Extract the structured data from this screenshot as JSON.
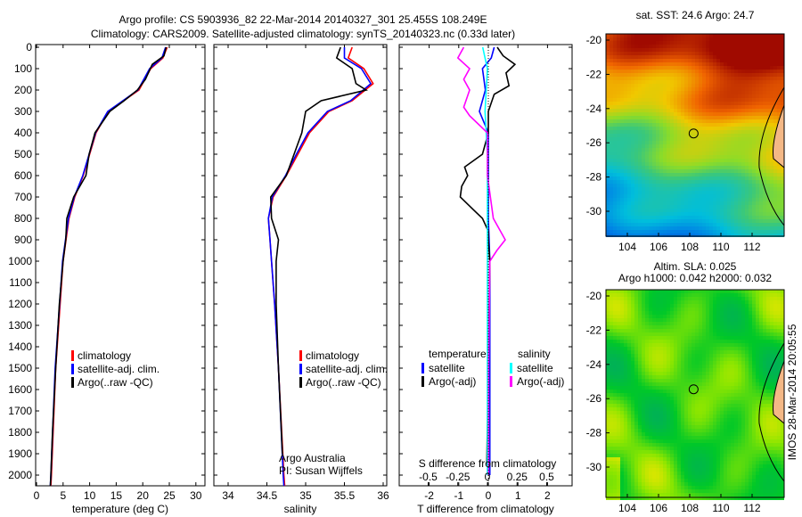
{
  "title_line1": "Argo profile: CS 5903936_82 22-Mar-2014 20140327_301 25.455S 108.249E",
  "title_line2": "Climatology: CARS2009. Satellite-adjusted climatology: synTS_20140323.nc (0.33d later)",
  "chart_data": [
    {
      "type": "line",
      "xlabel": "temperature (deg C)",
      "ylabel": "depth",
      "xlim": [
        -1,
        32
      ],
      "ylim": [
        2050,
        0
      ],
      "xticks": [
        "0",
        "5",
        "10",
        "15",
        "20",
        "25",
        "30"
      ],
      "yticks": [
        "0",
        "100",
        "200",
        "300",
        "400",
        "500",
        "600",
        "700",
        "800",
        "900",
        "1000",
        "1100",
        "1200",
        "1300",
        "1400",
        "1500",
        "1600",
        "1700",
        "1800",
        "1900",
        "2000"
      ],
      "legend": [
        "climatology",
        "satellite-adj. clim.",
        "Argo(..raw -QC)"
      ],
      "series": [
        {
          "name": "climatology",
          "color": "#ff0000",
          "depth": [
            0,
            50,
            100,
            200,
            300,
            400,
            600,
            700,
            800,
            1000,
            1500,
            2000,
            2050
          ],
          "values": [
            24.6,
            23.8,
            21.5,
            19.3,
            13.5,
            11.2,
            8.8,
            7.2,
            6.1,
            5.0,
            3.6,
            2.8,
            2.7
          ]
        },
        {
          "name": "satellite-adj. clim.",
          "color": "#0000ff",
          "depth": [
            0,
            50,
            100,
            200,
            300,
            400,
            600,
            700,
            800,
            1000,
            1500,
            2000,
            2050
          ],
          "values": [
            24.3,
            23.6,
            21.3,
            19.1,
            13.4,
            11.1,
            8.7,
            7.1,
            6.0,
            4.9,
            3.5,
            2.7,
            2.6
          ]
        },
        {
          "name": "Argo(..raw -QC)",
          "color": "#000000",
          "depth": [
            0,
            40,
            80,
            150,
            200,
            250,
            300,
            400,
            500,
            600,
            700,
            800,
            900,
            1000,
            1200,
            1500,
            1800,
            2000,
            2050
          ],
          "values": [
            24.4,
            24.0,
            21.8,
            20.5,
            19.0,
            16.5,
            13.8,
            11.0,
            9.9,
            9.3,
            7.0,
            5.7,
            5.5,
            5.0,
            4.3,
            3.6,
            3.0,
            2.7,
            2.6
          ]
        }
      ]
    },
    {
      "type": "line",
      "xlabel": "salinity",
      "xlim": [
        33.82,
        36.05
      ],
      "xticks": [
        "34",
        "34.5",
        "35",
        "35.5",
        "36"
      ],
      "legend": [
        "climatology",
        "satellite-adj. clim.",
        "Argo(..raw -QC)"
      ],
      "annotation": [
        "Argo Australia",
        "PI: Susan Wijffels"
      ],
      "series": [
        {
          "name": "climatology",
          "color": "#ff0000",
          "depth": [
            0,
            50,
            100,
            170,
            250,
            300,
            400,
            500,
            600,
            700,
            800,
            900,
            1000,
            1200,
            1500,
            2000,
            2050
          ],
          "values": [
            35.6,
            35.55,
            35.75,
            35.87,
            35.6,
            35.3,
            35.05,
            34.9,
            34.75,
            34.58,
            34.52,
            34.54,
            34.56,
            34.6,
            34.65,
            34.72,
            34.73
          ]
        },
        {
          "name": "satellite-adj. clim.",
          "color": "#0000ff",
          "depth": [
            0,
            50,
            100,
            170,
            250,
            300,
            400,
            500,
            600,
            700,
            800,
            900,
            1000,
            1200,
            1500,
            2000,
            2050
          ],
          "values": [
            35.5,
            35.5,
            35.72,
            35.84,
            35.58,
            35.28,
            35.03,
            34.88,
            34.74,
            34.57,
            34.52,
            34.54,
            34.56,
            34.6,
            34.65,
            34.71,
            34.72
          ]
        },
        {
          "name": "Argo(..raw -QC)",
          "color": "#000000",
          "depth": [
            0,
            50,
            100,
            170,
            200,
            250,
            300,
            400,
            600,
            700,
            800,
            900,
            1000,
            1200,
            1500,
            1900
          ],
          "values": [
            35.45,
            35.4,
            35.6,
            35.65,
            35.78,
            35.2,
            35.0,
            34.95,
            34.75,
            34.55,
            34.56,
            34.65,
            34.62,
            34.62,
            34.65,
            34.7
          ]
        }
      ]
    },
    {
      "type": "line",
      "xlabel": "T difference from climatology",
      "x2label": "S difference from climatology",
      "xlim": [
        -3.1,
        2.9
      ],
      "xticks": [
        "-2",
        "-1",
        "0",
        "1",
        "2"
      ],
      "x2ticks": [
        "-0.5",
        "-0.25",
        "0",
        "0.25",
        "0.5"
      ],
      "legend_t_title": "temperature",
      "legend_s_title": "salinity",
      "legend": [
        "satellite",
        "Argo(-adj)",
        "satellite",
        "Argo(-adj)"
      ],
      "series": [
        {
          "name": "T satellite",
          "color": "#0000ff",
          "unit": "T",
          "depth": [
            0,
            50,
            100,
            200,
            300,
            400,
            500,
            800,
            1000,
            2000
          ],
          "values": [
            0.2,
            0.1,
            -0.2,
            -0.1,
            -0.3,
            0.0,
            0.0,
            0.0,
            0.05,
            0.05
          ]
        },
        {
          "name": "T Argo(-adj)",
          "color": "#000000",
          "unit": "T",
          "depth": [
            0,
            40,
            80,
            120,
            180,
            220,
            300,
            400,
            500,
            560,
            600,
            650,
            700,
            760,
            800,
            860,
            900,
            1000,
            1500,
            1950
          ],
          "values": [
            0.3,
            0.5,
            0.9,
            0.6,
            0.7,
            0.2,
            0.0,
            0.0,
            -0.2,
            -0.8,
            -0.7,
            -0.9,
            -0.95,
            -0.5,
            -0.2,
            0.0,
            0.0,
            0.05,
            0.0,
            -0.05
          ]
        },
        {
          "name": "S satellite",
          "color": "#00ffff",
          "unit": "S",
          "depth": [
            0,
            50,
            100,
            300,
            500,
            800,
            1200,
            2000
          ],
          "values": [
            -0.04,
            -0.02,
            0.0,
            -0.02,
            0.0,
            0.0,
            0.0,
            0.0
          ]
        },
        {
          "name": "S Argo(-adj)",
          "color": "#ff00ff",
          "unit": "S",
          "depth": [
            0,
            50,
            100,
            150,
            200,
            280,
            320,
            400,
            600,
            800,
            850,
            900,
            950,
            1000,
            1500,
            2000
          ],
          "values": [
            -0.2,
            -0.25,
            -0.15,
            -0.2,
            -0.15,
            -0.2,
            -0.15,
            0.0,
            0.0,
            0.05,
            0.1,
            0.15,
            0.08,
            0.02,
            0.01,
            0.01
          ]
        }
      ]
    }
  ],
  "maps": {
    "top": {
      "title": "sat. SST: 24.6  Argo: 24.7",
      "lon_ticks": [
        "104",
        "106",
        "108",
        "110",
        "112"
      ],
      "lat_ticks": [
        "-20",
        "-22",
        "-24",
        "-26",
        "-28",
        "-30"
      ],
      "float_lon": 108.249,
      "float_lat": -25.455
    },
    "bottom": {
      "title1": "Altim. SLA: 0.025",
      "title2": "Argo h1000: 0.042 h2000: 0.032",
      "lon_ticks": [
        "104",
        "106",
        "108",
        "110",
        "112"
      ],
      "lat_ticks": [
        "-20",
        "-22",
        "-24",
        "-26",
        "-28",
        "-30"
      ],
      "float_lon": 108.249,
      "float_lat": -25.455
    }
  },
  "credit": "IMOS 28-Mar-2014 20:05:55"
}
